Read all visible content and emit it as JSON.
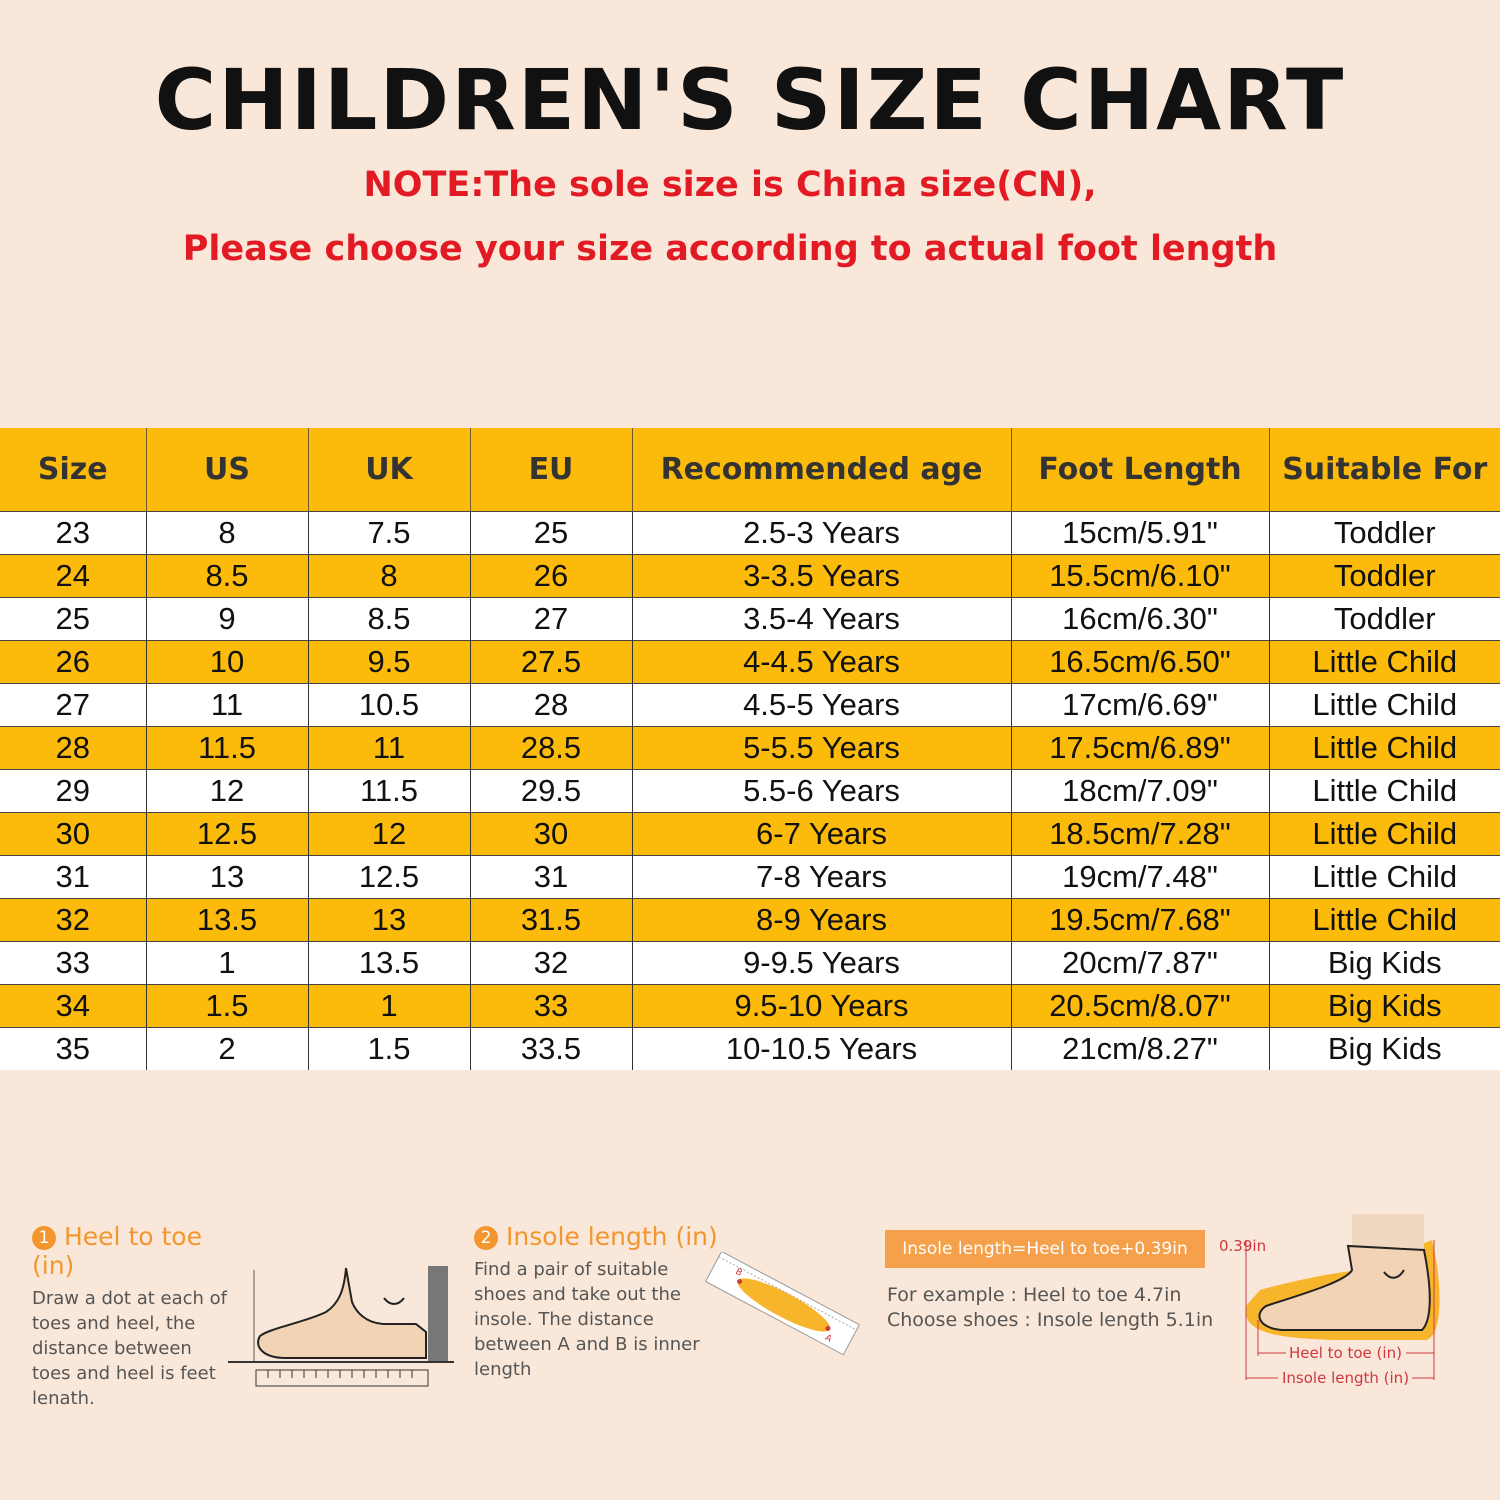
{
  "title": "CHILDREN'S SIZE CHART",
  "note_line1": "NOTE:The sole size is China size(CN),",
  "note_line2": "Please choose your size according to actual foot length",
  "table": {
    "headers": [
      "Size",
      "US",
      "UK",
      "EU",
      "Recommended age",
      "Foot Length",
      "Suitable For"
    ],
    "rows": [
      [
        "23",
        "8",
        "7.5",
        "25",
        "2.5-3 Years",
        "15cm/5.91\"",
        "Toddler"
      ],
      [
        "24",
        "8.5",
        "8",
        "26",
        "3-3.5 Years",
        "15.5cm/6.10\"",
        "Toddler"
      ],
      [
        "25",
        "9",
        "8.5",
        "27",
        "3.5-4 Years",
        "16cm/6.30\"",
        "Toddler"
      ],
      [
        "26",
        "10",
        "9.5",
        "27.5",
        "4-4.5 Years",
        "16.5cm/6.50\"",
        "Little Child"
      ],
      [
        "27",
        "11",
        "10.5",
        "28",
        "4.5-5 Years",
        "17cm/6.69\"",
        "Little Child"
      ],
      [
        "28",
        "11.5",
        "11",
        "28.5",
        "5-5.5 Years",
        "17.5cm/6.89\"",
        "Little Child"
      ],
      [
        "29",
        "12",
        "11.5",
        "29.5",
        "5.5-6 Years",
        "18cm/7.09\"",
        "Little Child"
      ],
      [
        "30",
        "12.5",
        "12",
        "30",
        "6-7 Years",
        "18.5cm/7.28\"",
        "Little Child"
      ],
      [
        "31",
        "13",
        "12.5",
        "31",
        "7-8 Years",
        "19cm/7.48\"",
        "Little Child"
      ],
      [
        "32",
        "13.5",
        "13",
        "31.5",
        "8-9 Years",
        "19.5cm/7.68\"",
        "Little Child"
      ],
      [
        "33",
        "1",
        "13.5",
        "32",
        "9-9.5 Years",
        "20cm/7.87\"",
        "Big Kids"
      ],
      [
        "34",
        "1.5",
        "1",
        "33",
        "9.5-10 Years",
        "20.5cm/8.07\"",
        "Big Kids"
      ],
      [
        "35",
        "2",
        "1.5",
        "33.5",
        "10-10.5 Years",
        "21cm/8.27\"",
        "Big Kids"
      ]
    ]
  },
  "guide1": {
    "num": "1",
    "title": "Heel to toe (in)",
    "text": "Draw a dot at each of\ntoes and heel, the\ndistance between\ntoes and heel is feet\nlenath."
  },
  "guide2": {
    "num": "2",
    "title": "Insole length (in)",
    "text": "Find a pair of suitable\nshoes and take out the\ninsole. The distance\nbetween A and B is inner\nlength",
    "point_a": "A",
    "point_b": "B"
  },
  "guide3": {
    "formula": "Insole length=Heel to toe+0.39in",
    "example_line1": "For example : Heel to toe  4.7in",
    "example_line2": "Choose shoes : Insole length 5.1in",
    "gap_label": "0.39in",
    "heel_to_toe_label": "Heel to toe (in)",
    "insole_label": "Insole length (in)"
  },
  "colors": {
    "background": "#f9e8da",
    "highlight": "#fcbb0a",
    "note_red": "#e21a23",
    "guide_orange": "#f3962f"
  }
}
